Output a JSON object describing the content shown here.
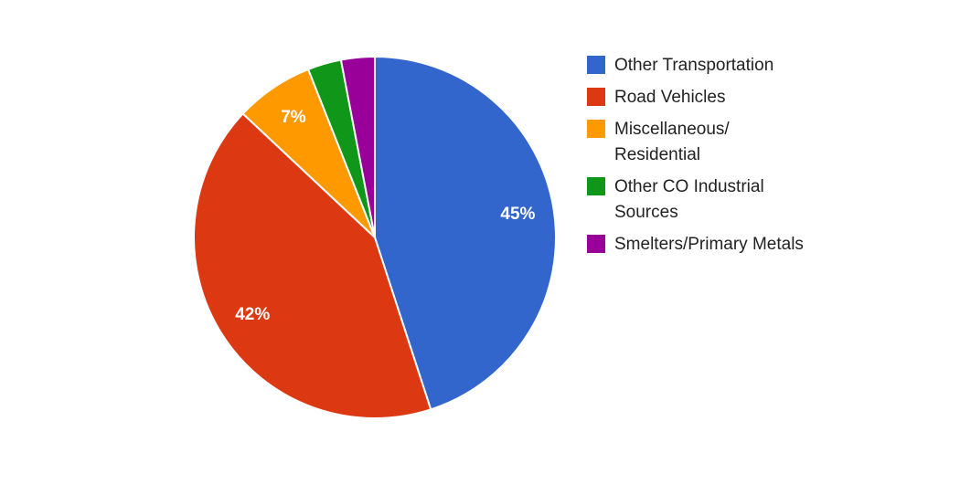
{
  "chart_data": {
    "type": "pie",
    "series": [
      {
        "name": "Other Transportation",
        "value": 45,
        "label": "45%",
        "color": "#3366CC"
      },
      {
        "name": "Road Vehicles",
        "value": 42,
        "label": "42%",
        "color": "#DC3912"
      },
      {
        "name": "Miscellaneous/ Residential",
        "value": 7,
        "label": "7%",
        "color": "#FF9900"
      },
      {
        "name": "Other CO Industrial Sources",
        "value": 3,
        "label": "",
        "color": "#109618"
      },
      {
        "name": "Smelters/Primary Metals",
        "value": 3,
        "label": "",
        "color": "#990099"
      }
    ],
    "legend_position": "right",
    "start_angle": "top, clockwise"
  }
}
